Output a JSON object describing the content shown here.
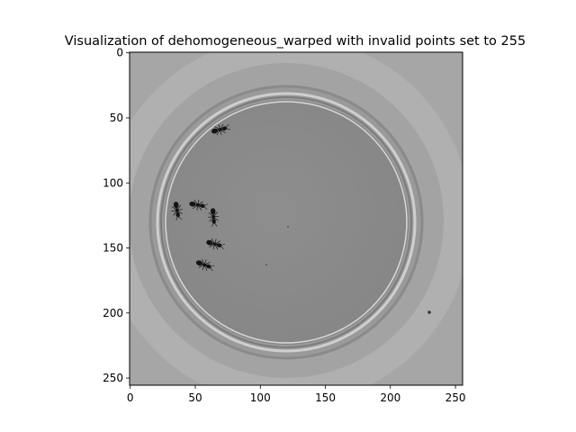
{
  "chart_data": {
    "type": "heatmap",
    "title": "Visualization of dehomogeneous_warped with invalid points set to 255",
    "xlabel": "",
    "ylabel": "",
    "xlim": [
      -0.5,
      255.5
    ],
    "ylim": [
      255.5,
      -0.5
    ],
    "x_ticks": [
      0,
      50,
      100,
      150,
      200,
      250
    ],
    "y_ticks": [
      0,
      50,
      100,
      150,
      200,
      250
    ],
    "colormap": "gray",
    "grid": false,
    "legend": "none",
    "image_description_colors": {
      "background_ring": "#b4b4b4",
      "outer_area": "#a8a8a8",
      "dish_interior": "#8c8c8c",
      "rim_light": "#d2d2d2",
      "rim_dark": "#7a7a7a",
      "ant": "#141414"
    },
    "ants_data_units": [
      {
        "x": 69,
        "y": 59,
        "angle": -15
      },
      {
        "x": 36,
        "y": 121,
        "angle": 80
      },
      {
        "x": 52,
        "y": 117,
        "angle": 10
      },
      {
        "x": 64,
        "y": 126,
        "angle": 85
      },
      {
        "x": 65,
        "y": 147,
        "angle": 15
      },
      {
        "x": 57,
        "y": 163,
        "angle": 20
      }
    ]
  }
}
